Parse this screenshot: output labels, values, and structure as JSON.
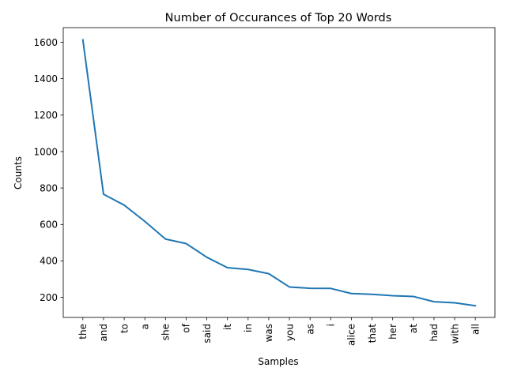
{
  "chart_data": {
    "type": "line",
    "title": "Number of Occurances of Top 20 Words",
    "xlabel": "Samples",
    "ylabel": "Counts",
    "categories": [
      "the",
      "and",
      "to",
      "a",
      "she",
      "of",
      "said",
      "it",
      "in",
      "was",
      "you",
      "as",
      "i",
      "alice",
      "that",
      "her",
      "at",
      "had",
      "with",
      "all"
    ],
    "values": [
      1613,
      766,
      706,
      617,
      520,
      495,
      420,
      363,
      353,
      330,
      257,
      250,
      249,
      221,
      217,
      209,
      205,
      176,
      170,
      154
    ],
    "ylim": [
      90,
      1680
    ],
    "yticks": [
      200,
      400,
      600,
      800,
      1000,
      1200,
      1400,
      1600
    ],
    "grid": false,
    "line_color": "#1f77b4"
  }
}
